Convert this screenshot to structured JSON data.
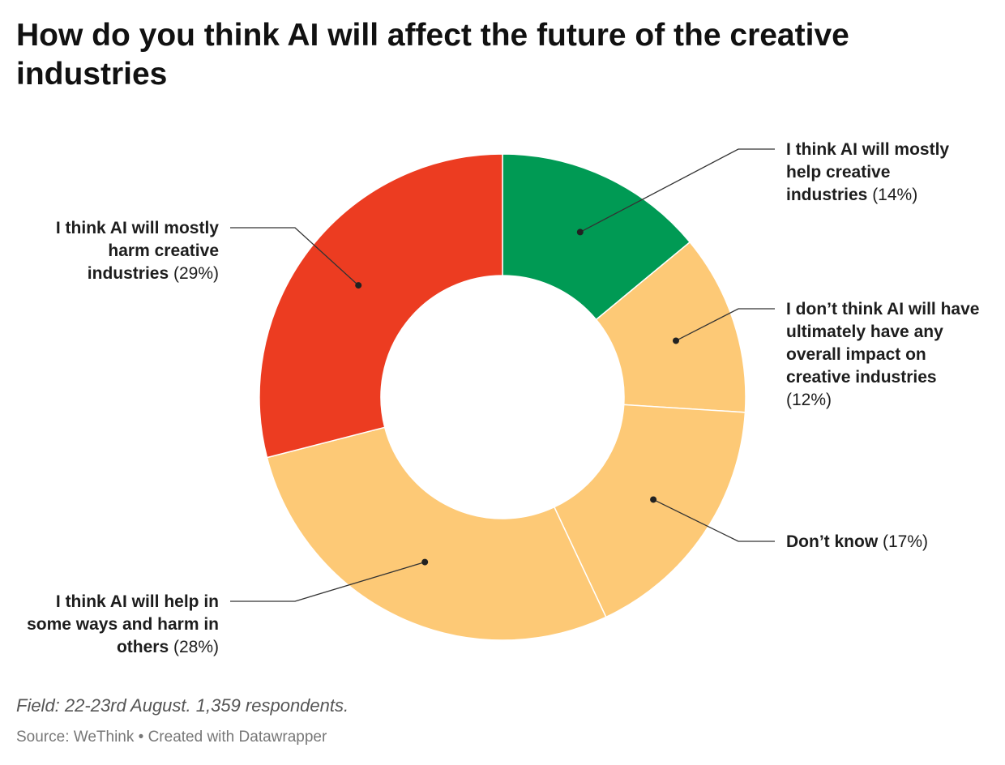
{
  "title": "How do you think AI will affect the future of the creative industries",
  "notes": "Field: 22-23rd August. 1,359 respondents.",
  "source": "Source: WeThink • Created with Datawrapper",
  "chart_data": {
    "type": "pie",
    "donut": true,
    "slices": [
      {
        "name": "I think AI will mostly help creative industries",
        "label": "I think AI will mostly help creative industries",
        "display": "(14%)",
        "value": 14,
        "color": "#009a54"
      },
      {
        "name": "I don't think AI will have ultimately have any overall impact on creative industries",
        "label": "I don’t think AI will have ultimately have any overall impact on creative industries",
        "display": "(12%)",
        "value": 12,
        "color": "#fdc976"
      },
      {
        "name": "Don't know",
        "label": "Don’t know",
        "display": "(17%)",
        "value": 17,
        "color": "#fdc976"
      },
      {
        "name": "I think AI will help in some ways and harm in others",
        "label": "I think AI will help in some ways and harm in others",
        "display": "(28%)",
        "value": 28,
        "color": "#fdc976"
      },
      {
        "name": "I think AI will mostly harm creative industries",
        "label": "I think AI will mostly harm creative industries",
        "display": "(29%)",
        "value": 29,
        "color": "#ec3c21"
      }
    ]
  }
}
